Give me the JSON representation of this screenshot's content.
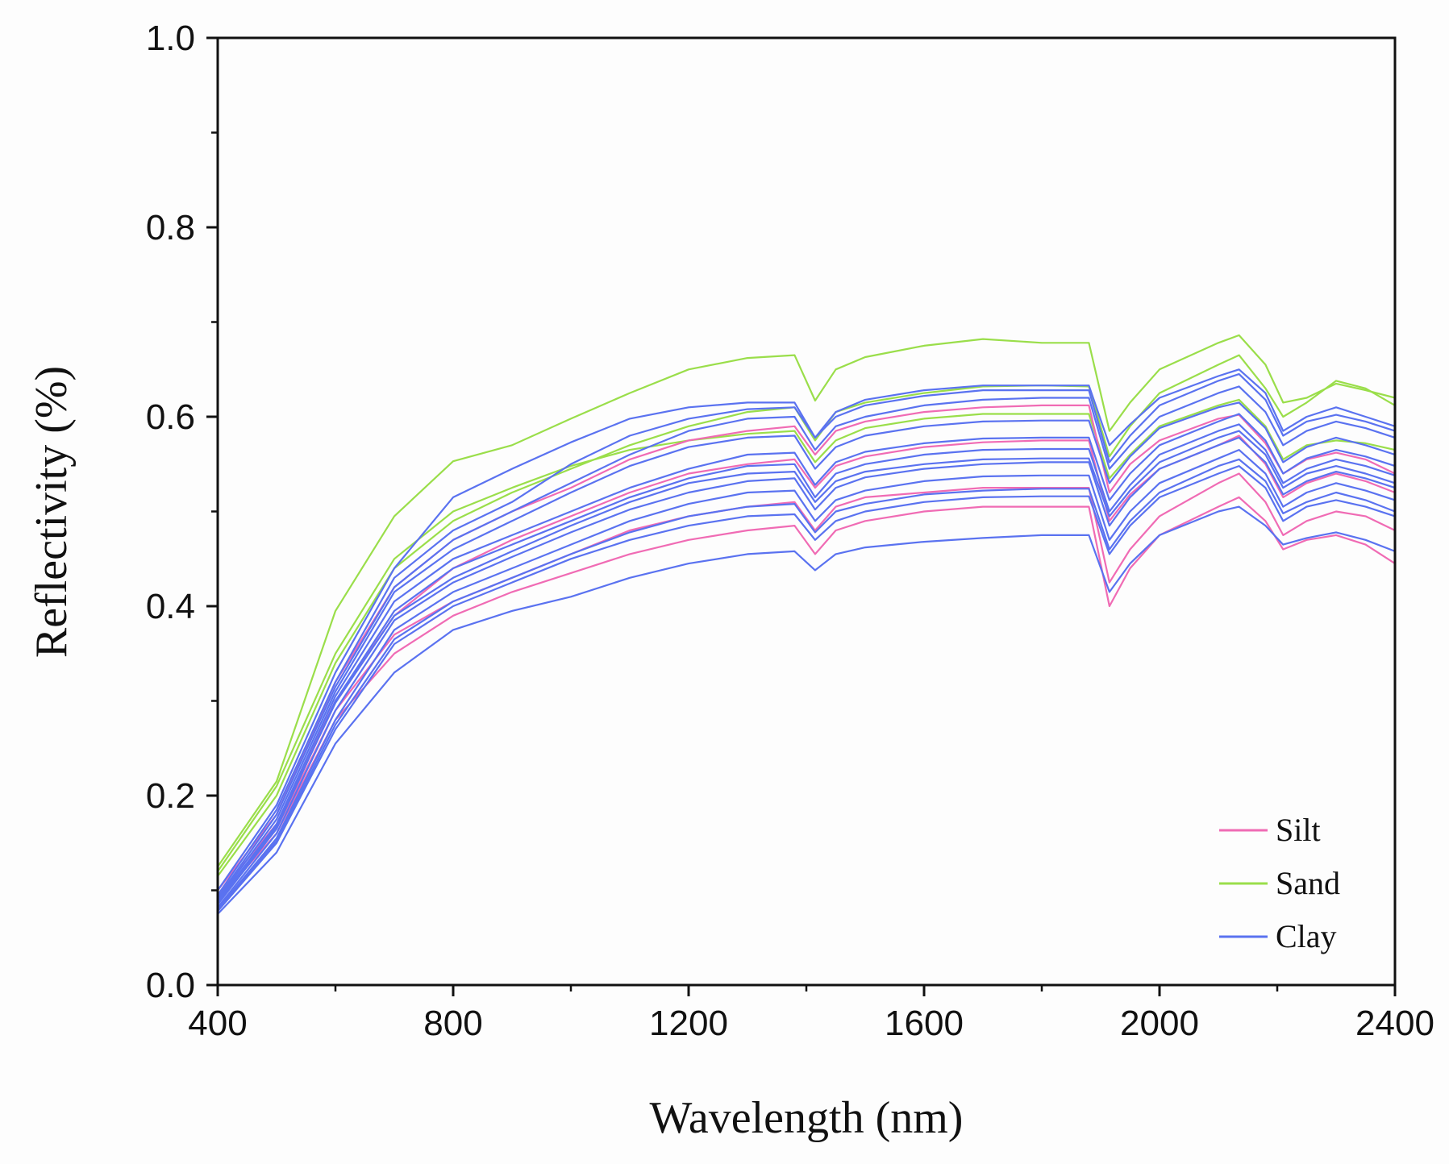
{
  "chart_data": {
    "type": "line",
    "title": "",
    "xlabel": "Wavelength (nm)",
    "ylabel": "Reflectivity (%)",
    "xlim": [
      400,
      2400
    ],
    "ylim": [
      0.0,
      1.0
    ],
    "xticks": [
      400,
      800,
      1200,
      1600,
      2000,
      2400
    ],
    "yticks": [
      0.0,
      0.2,
      0.4,
      0.6,
      0.8,
      1.0
    ],
    "xtick_labels": [
      "400",
      "800",
      "1200",
      "1600",
      "2000",
      "2400"
    ],
    "ytick_labels": [
      "0.0",
      "0.2",
      "0.4",
      "0.6",
      "0.8",
      "1.0"
    ],
    "grid": false,
    "legend_position": "bottom-right",
    "x": [
      400,
      500,
      600,
      700,
      800,
      900,
      1000,
      1100,
      1200,
      1300,
      1380,
      1415,
      1450,
      1500,
      1600,
      1700,
      1800,
      1880,
      1915,
      1950,
      2000,
      2100,
      2135,
      2180,
      2210,
      2250,
      2300,
      2350,
      2400
    ],
    "series": [
      {
        "name": "Sand",
        "class": "Sand",
        "color": "#9ade4a",
        "values": [
          0.125,
          0.215,
          0.395,
          0.495,
          0.553,
          0.57,
          0.598,
          0.625,
          0.65,
          0.662,
          0.665,
          0.617,
          0.65,
          0.663,
          0.675,
          0.682,
          0.678,
          0.678,
          0.585,
          0.615,
          0.65,
          0.678,
          0.686,
          0.655,
          0.615,
          0.62,
          0.635,
          0.628,
          0.62
        ]
      },
      {
        "name": "Sand",
        "class": "Sand",
        "color": "#9ade4a",
        "values": [
          0.12,
          0.21,
          0.35,
          0.45,
          0.5,
          0.525,
          0.548,
          0.565,
          0.575,
          0.582,
          0.585,
          0.552,
          0.575,
          0.588,
          0.598,
          0.603,
          0.603,
          0.603,
          0.535,
          0.56,
          0.59,
          0.612,
          0.618,
          0.59,
          0.555,
          0.57,
          0.575,
          0.572,
          0.565
        ]
      },
      {
        "name": "Sand",
        "class": "Sand",
        "color": "#9ade4a",
        "values": [
          0.115,
          0.2,
          0.34,
          0.44,
          0.49,
          0.52,
          0.545,
          0.57,
          0.59,
          0.605,
          0.61,
          0.575,
          0.605,
          0.615,
          0.625,
          0.632,
          0.633,
          0.632,
          0.558,
          0.59,
          0.625,
          0.655,
          0.665,
          0.63,
          0.6,
          0.615,
          0.638,
          0.63,
          0.612
        ]
      },
      {
        "name": "Silt",
        "class": "Silt",
        "color": "#f06bb4",
        "values": [
          0.1,
          0.18,
          0.32,
          0.42,
          0.47,
          0.5,
          0.525,
          0.555,
          0.575,
          0.585,
          0.59,
          0.56,
          0.585,
          0.595,
          0.605,
          0.61,
          0.612,
          0.612,
          0.52,
          0.55,
          0.575,
          0.598,
          0.602,
          0.572,
          0.54,
          0.555,
          0.562,
          0.555,
          0.54
        ]
      },
      {
        "name": "Silt",
        "class": "Silt",
        "color": "#f06bb4",
        "values": [
          0.095,
          0.17,
          0.3,
          0.39,
          0.44,
          0.47,
          0.495,
          0.52,
          0.54,
          0.55,
          0.555,
          0.525,
          0.548,
          0.558,
          0.568,
          0.573,
          0.575,
          0.575,
          0.49,
          0.518,
          0.545,
          0.57,
          0.58,
          0.55,
          0.515,
          0.53,
          0.54,
          0.532,
          0.52
        ]
      },
      {
        "name": "Silt",
        "class": "Silt",
        "color": "#f06bb4",
        "values": [
          0.09,
          0.16,
          0.28,
          0.35,
          0.39,
          0.415,
          0.435,
          0.455,
          0.47,
          0.48,
          0.485,
          0.455,
          0.48,
          0.49,
          0.5,
          0.505,
          0.505,
          0.505,
          0.4,
          0.44,
          0.475,
          0.505,
          0.515,
          0.49,
          0.46,
          0.47,
          0.475,
          0.465,
          0.445
        ]
      },
      {
        "name": "Silt",
        "class": "Silt",
        "color": "#f06bb4",
        "values": [
          0.09,
          0.165,
          0.29,
          0.37,
          0.405,
          0.43,
          0.455,
          0.48,
          0.495,
          0.505,
          0.51,
          0.48,
          0.505,
          0.515,
          0.52,
          0.525,
          0.525,
          0.525,
          0.425,
          0.46,
          0.495,
          0.53,
          0.54,
          0.51,
          0.475,
          0.49,
          0.5,
          0.495,
          0.48
        ]
      },
      {
        "name": "Clay",
        "class": "Clay",
        "color": "#5a72f0",
        "values": [
          0.1,
          0.19,
          0.33,
          0.44,
          0.515,
          0.545,
          0.573,
          0.598,
          0.61,
          0.615,
          0.615,
          0.578,
          0.605,
          0.618,
          0.628,
          0.633,
          0.633,
          0.633,
          0.57,
          0.592,
          0.62,
          0.643,
          0.65,
          0.625,
          0.585,
          0.6,
          0.61,
          0.6,
          0.59
        ]
      },
      {
        "name": "Clay",
        "class": "Clay",
        "color": "#5a72f0",
        "values": [
          0.095,
          0.185,
          0.32,
          0.43,
          0.48,
          0.51,
          0.55,
          0.58,
          0.598,
          0.608,
          0.61,
          0.578,
          0.6,
          0.612,
          0.622,
          0.628,
          0.628,
          0.628,
          0.552,
          0.58,
          0.612,
          0.638,
          0.645,
          0.618,
          0.58,
          0.595,
          0.602,
          0.595,
          0.585
        ]
      },
      {
        "name": "Clay",
        "class": "Clay",
        "color": "#5a72f0",
        "values": [
          0.09,
          0.175,
          0.31,
          0.415,
          0.46,
          0.49,
          0.52,
          0.548,
          0.568,
          0.578,
          0.58,
          0.545,
          0.568,
          0.58,
          0.59,
          0.595,
          0.596,
          0.596,
          0.53,
          0.558,
          0.588,
          0.61,
          0.615,
          0.588,
          0.552,
          0.568,
          0.578,
          0.57,
          0.56
        ]
      },
      {
        "name": "Clay",
        "class": "Clay",
        "color": "#5a72f0",
        "values": [
          0.088,
          0.17,
          0.305,
          0.405,
          0.45,
          0.475,
          0.5,
          0.525,
          0.545,
          0.56,
          0.562,
          0.528,
          0.552,
          0.563,
          0.572,
          0.577,
          0.578,
          0.578,
          0.512,
          0.54,
          0.57,
          0.595,
          0.603,
          0.575,
          0.54,
          0.556,
          0.565,
          0.558,
          0.548
        ]
      },
      {
        "name": "Clay",
        "class": "Clay",
        "color": "#5a72f0",
        "values": [
          0.085,
          0.165,
          0.3,
          0.395,
          0.44,
          0.465,
          0.49,
          0.515,
          0.535,
          0.548,
          0.55,
          0.515,
          0.54,
          0.55,
          0.56,
          0.565,
          0.566,
          0.566,
          0.5,
          0.528,
          0.56,
          0.585,
          0.592,
          0.565,
          0.53,
          0.545,
          0.555,
          0.548,
          0.538
        ]
      },
      {
        "name": "Clay",
        "class": "Clay",
        "color": "#5a72f0",
        "values": [
          0.082,
          0.16,
          0.29,
          0.385,
          0.425,
          0.452,
          0.478,
          0.502,
          0.52,
          0.532,
          0.535,
          0.502,
          0.525,
          0.536,
          0.545,
          0.55,
          0.552,
          0.552,
          0.485,
          0.515,
          0.545,
          0.57,
          0.578,
          0.552,
          0.518,
          0.532,
          0.542,
          0.535,
          0.525
        ]
      },
      {
        "name": "Clay",
        "class": "Clay",
        "color": "#5a72f0",
        "values": [
          0.08,
          0.155,
          0.28,
          0.375,
          0.415,
          0.44,
          0.465,
          0.49,
          0.508,
          0.52,
          0.522,
          0.49,
          0.512,
          0.522,
          0.532,
          0.537,
          0.538,
          0.538,
          0.47,
          0.5,
          0.53,
          0.556,
          0.565,
          0.54,
          0.505,
          0.52,
          0.53,
          0.522,
          0.512
        ]
      },
      {
        "name": "Clay",
        "class": "Clay",
        "color": "#5a72f0",
        "values": [
          0.078,
          0.15,
          0.27,
          0.36,
          0.4,
          0.425,
          0.45,
          0.47,
          0.485,
          0.495,
          0.497,
          0.47,
          0.49,
          0.5,
          0.51,
          0.515,
          0.516,
          0.516,
          0.455,
          0.485,
          0.515,
          0.54,
          0.548,
          0.525,
          0.49,
          0.505,
          0.512,
          0.505,
          0.495
        ]
      },
      {
        "name": "Clay",
        "class": "Clay",
        "color": "#5a72f0",
        "values": [
          0.075,
          0.14,
          0.255,
          0.33,
          0.375,
          0.395,
          0.41,
          0.43,
          0.445,
          0.455,
          0.458,
          0.438,
          0.455,
          0.462,
          0.468,
          0.472,
          0.475,
          0.475,
          0.415,
          0.445,
          0.475,
          0.5,
          0.505,
          0.485,
          0.465,
          0.472,
          0.478,
          0.47,
          0.458
        ]
      },
      {
        "name": "Clay",
        "class": "Clay",
        "color": "#5a72f0",
        "values": [
          0.092,
          0.18,
          0.315,
          0.42,
          0.47,
          0.5,
          0.53,
          0.56,
          0.585,
          0.598,
          0.6,
          0.565,
          0.59,
          0.6,
          0.612,
          0.618,
          0.62,
          0.62,
          0.545,
          0.57,
          0.6,
          0.625,
          0.632,
          0.605,
          0.57,
          0.585,
          0.595,
          0.588,
          0.578
        ]
      },
      {
        "name": "Clay",
        "class": "Clay",
        "color": "#5a72f0",
        "values": [
          0.086,
          0.168,
          0.298,
          0.39,
          0.43,
          0.458,
          0.485,
          0.51,
          0.53,
          0.54,
          0.542,
          0.51,
          0.532,
          0.542,
          0.55,
          0.555,
          0.556,
          0.556,
          0.495,
          0.522,
          0.552,
          0.578,
          0.585,
          0.56,
          0.525,
          0.54,
          0.548,
          0.54,
          0.53
        ]
      },
      {
        "name": "Clay",
        "class": "Clay",
        "color": "#5a72f0",
        "values": [
          0.08,
          0.152,
          0.275,
          0.365,
          0.405,
          0.43,
          0.455,
          0.478,
          0.495,
          0.505,
          0.508,
          0.478,
          0.5,
          0.508,
          0.518,
          0.522,
          0.524,
          0.524,
          0.46,
          0.49,
          0.52,
          0.548,
          0.555,
          0.532,
          0.498,
          0.51,
          0.52,
          0.512,
          0.5
        ]
      }
    ],
    "legend": [
      {
        "label": "Silt",
        "color": "#f06bb4"
      },
      {
        "label": "Sand",
        "color": "#9ade4a"
      },
      {
        "label": "Clay",
        "color": "#5a72f0"
      }
    ]
  }
}
